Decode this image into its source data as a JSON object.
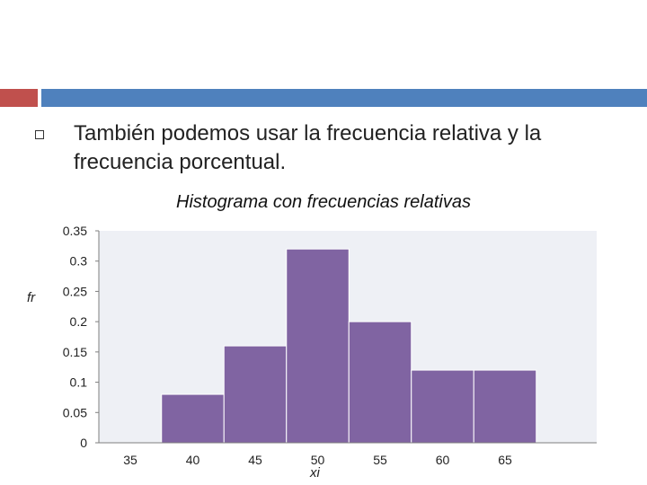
{
  "slide": {
    "text": "También podemos usar la frecuencia relativa y la frecuencia porcentual."
  },
  "colors": {
    "accent_red": "#c0504d",
    "accent_blue": "#4f81bd",
    "bar_fill": "#8064a2",
    "plot_bg": "#eef0f5"
  },
  "chart_data": {
    "type": "bar",
    "title": "Histograma con frecuencias relativas",
    "xlabel": "xi",
    "ylabel": "fr",
    "x_ticks": [
      35,
      40,
      45,
      50,
      55,
      60,
      65
    ],
    "categories": [
      40,
      45,
      50,
      55,
      60,
      65
    ],
    "values": [
      0.08,
      0.16,
      0.32,
      0.2,
      0.12,
      0.12
    ],
    "y_ticks": [
      "0",
      "0.05",
      "0.1",
      "0.15",
      "0.2",
      "0.25",
      "0.3",
      "0.35"
    ],
    "ylim": [
      0,
      0.35
    ],
    "grid": false,
    "legend": "none"
  }
}
